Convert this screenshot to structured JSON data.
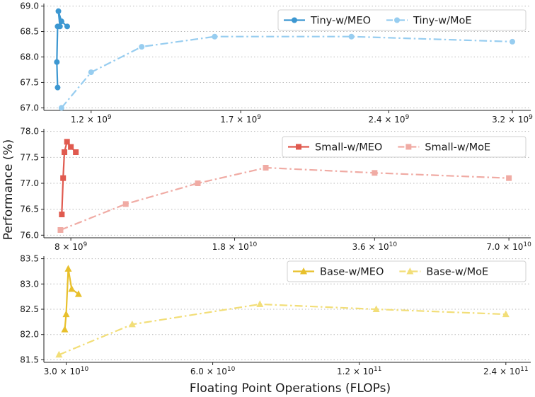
{
  "figure": {
    "xlabel": "Floating Point Operations (FLOPs)",
    "ylabel": "Performance (%)"
  },
  "chart_data": [
    {
      "type": "line",
      "xscale": "log",
      "grid": "y-dotted",
      "legend": "top-right",
      "xticks": [
        {
          "value": 1200000000.0,
          "mantissa": "1.2",
          "exponent": "9"
        },
        {
          "value": 1700000000.0,
          "mantissa": "1.7",
          "exponent": "9"
        },
        {
          "value": 2400000000.0,
          "mantissa": "2.4",
          "exponent": "9"
        },
        {
          "value": 3200000000.0,
          "mantissa": "3.2",
          "exponent": "9"
        }
      ],
      "xlim": [
        1075000000.0,
        3340000000.0
      ],
      "yticks": [
        "67.0",
        "67.5",
        "68.0",
        "68.5",
        "69.0"
      ],
      "ylim": [
        66.95,
        69.05
      ],
      "series": [
        {
          "name": "Tiny-w/MEO",
          "color": "#3c97d1",
          "marker": "circle",
          "style": "solid",
          "points": [
            [
              1110000000.0,
              67.4
            ],
            [
              1108000000.0,
              67.9
            ],
            [
              1110000000.0,
              68.6
            ],
            [
              1116000000.0,
              68.6
            ],
            [
              1112000000.0,
              68.9
            ],
            [
              1120000000.0,
              68.7
            ],
            [
              1135000000.0,
              68.6
            ]
          ]
        },
        {
          "name": "Tiny-w/MoE",
          "color": "#97cdf0",
          "marker": "circle",
          "style": "dashdot",
          "points": [
            [
              1120000000.0,
              67.0
            ],
            [
              1200000000.0,
              67.7
            ],
            [
              1350000000.0,
              68.2
            ],
            [
              1600000000.0,
              68.4
            ],
            [
              2200000000.0,
              68.4
            ],
            [
              3200000000.0,
              68.3
            ]
          ]
        }
      ]
    },
    {
      "type": "line",
      "xscale": "log",
      "grid": "y-dotted",
      "legend": "top-right",
      "xticks": [
        {
          "value": 8000000000.0,
          "mantissa": "8",
          "exponent": "9"
        },
        {
          "value": 18000000000.0,
          "mantissa": "1.8",
          "exponent": "10"
        },
        {
          "value": 36000000000.0,
          "mantissa": "3.6",
          "exponent": "10"
        },
        {
          "value": 70000000000.0,
          "mantissa": "7.0",
          "exponent": "10"
        }
      ],
      "xlim": [
        7000000000.0,
        78000000000.0
      ],
      "yticks": [
        "76.0",
        "76.5",
        "77.0",
        "77.5",
        "78.0"
      ],
      "ylim": [
        75.95,
        78.05
      ],
      "series": [
        {
          "name": "Small-w/MEO",
          "color": "#e05a4f",
          "marker": "square",
          "style": "solid",
          "points": [
            [
              7650000000.0,
              76.4
            ],
            [
              7700000000.0,
              77.1
            ],
            [
              7750000000.0,
              77.6
            ],
            [
              7850000000.0,
              77.8
            ],
            [
              8000000000.0,
              77.7
            ],
            [
              8200000000.0,
              77.6
            ]
          ]
        },
        {
          "name": "Small-w/MoE",
          "color": "#f0aba4",
          "marker": "square",
          "style": "dashdot",
          "points": [
            [
              7600000000.0,
              76.1
            ],
            [
              10500000000.0,
              76.6
            ],
            [
              15000000000.0,
              77.0
            ],
            [
              21000000000.0,
              77.3
            ],
            [
              36000000000.0,
              77.2
            ],
            [
              70000000000.0,
              77.1
            ]
          ]
        }
      ]
    },
    {
      "type": "line",
      "xscale": "log",
      "grid": "y-dotted",
      "legend": "top-right",
      "xticks": [
        {
          "value": 30000000000.0,
          "mantissa": "3.0",
          "exponent": "10"
        },
        {
          "value": 60000000000.0,
          "mantissa": "6.0",
          "exponent": "10"
        },
        {
          "value": 120000000000.0,
          "mantissa": "1.2",
          "exponent": "11"
        },
        {
          "value": 240000000000.0,
          "mantissa": "2.4",
          "exponent": "11"
        }
      ],
      "xlim": [
        27000000000.0,
        270000000000.0
      ],
      "yticks": [
        "81.5",
        "82.0",
        "82.5",
        "83.0",
        "83.5"
      ],
      "ylim": [
        81.45,
        83.55
      ],
      "series": [
        {
          "name": "Base-w/MEO",
          "color": "#e8c02c",
          "marker": "triangle",
          "style": "solid",
          "points": [
            [
              29800000000.0,
              82.1
            ],
            [
              30000000000.0,
              82.4
            ],
            [
              30300000000.0,
              83.3
            ],
            [
              30800000000.0,
              82.9
            ],
            [
              31800000000.0,
              82.8
            ]
          ]
        },
        {
          "name": "Base-w/MoE",
          "color": "#f2de78",
          "marker": "triangle",
          "style": "dashdot",
          "points": [
            [
              29000000000.0,
              81.6
            ],
            [
              41000000000.0,
              82.2
            ],
            [
              75000000000.0,
              82.6
            ],
            [
              130000000000.0,
              82.5
            ],
            [
              240000000000.0,
              82.4
            ]
          ]
        }
      ]
    }
  ]
}
